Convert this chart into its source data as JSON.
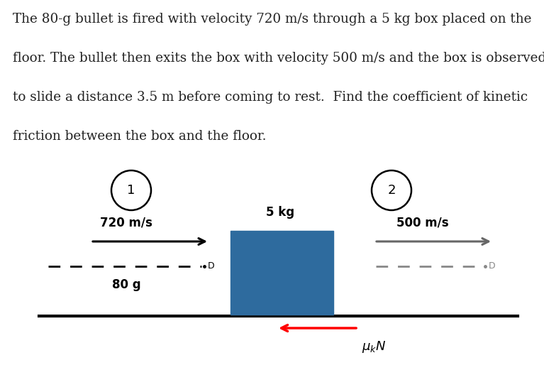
{
  "background_color": "#ffffff",
  "text_lines": [
    "The 80-g bullet is fired with velocity 720 m/s through a 5 kg box placed on the",
    "floor. The bullet then exits the box with velocity 500 m/s and the box is observed",
    "to slide a distance 3.5 m before coming to rest.  Find the coefficient of kinetic",
    "friction between the box and the floor."
  ],
  "text_fontsize": 13.2,
  "text_color": "#222222",
  "box_color": "#2E6B9E",
  "floor_color": "#000000",
  "floor_lw": 3,
  "circle_lw": 1.8,
  "fontsize_labels": 12,
  "fontsize_circle": 13,
  "fontsize_friction": 13
}
